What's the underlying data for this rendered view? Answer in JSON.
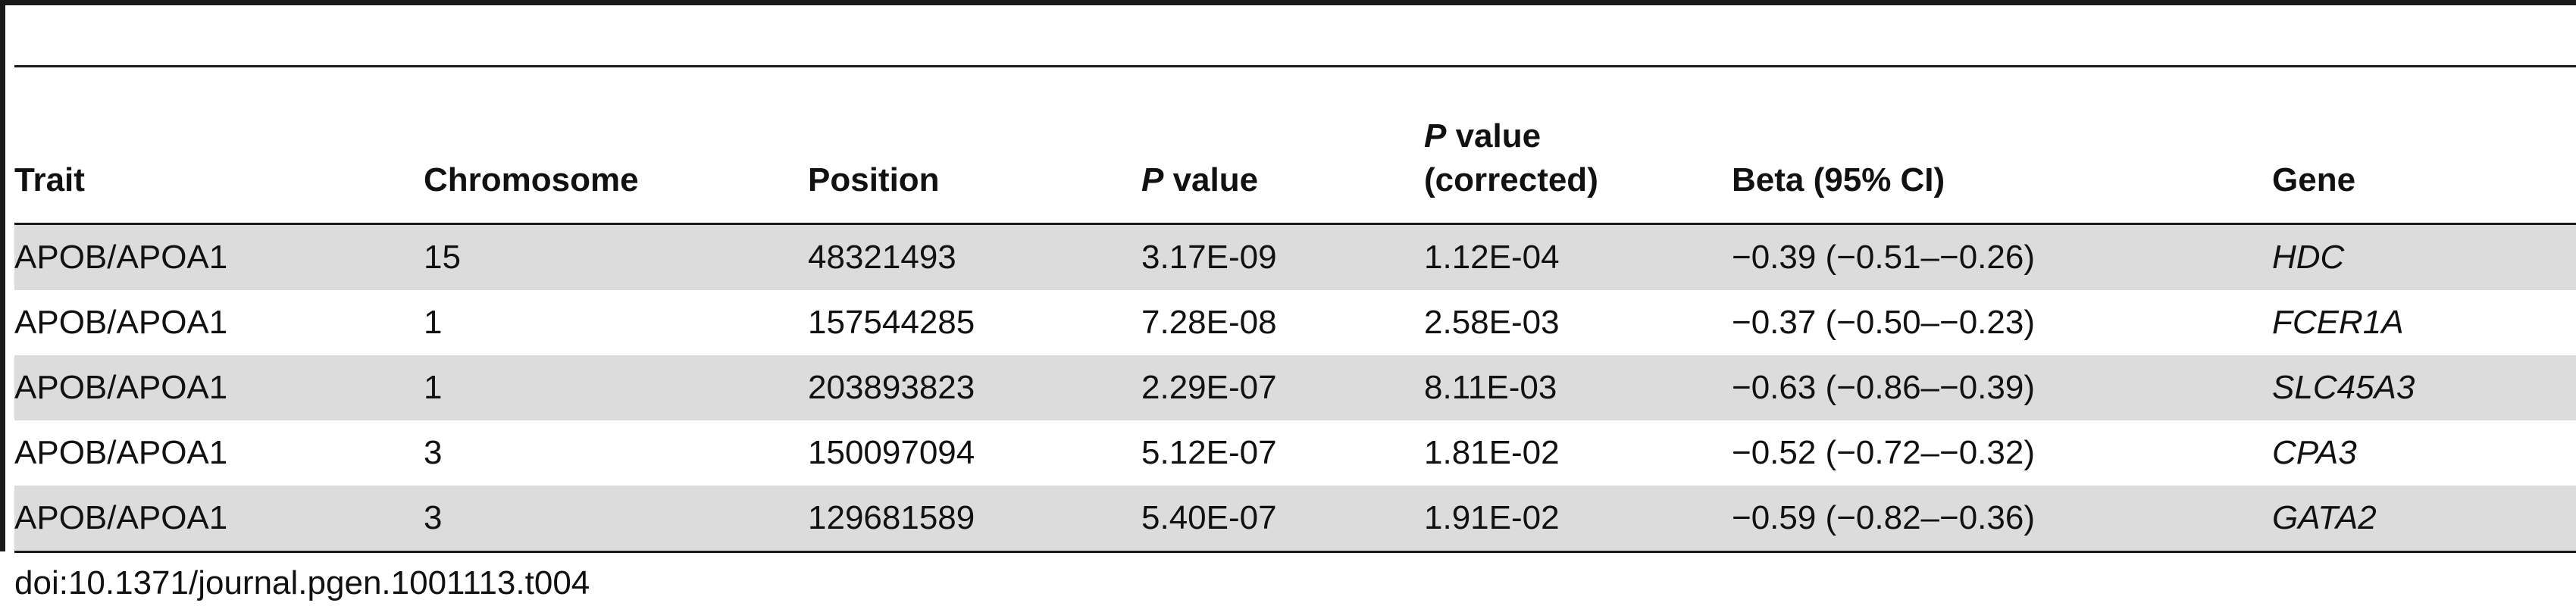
{
  "table": {
    "headers": [
      {
        "pre_italic": "",
        "italic": "",
        "text": "Trait"
      },
      {
        "pre_italic": "",
        "italic": "",
        "text": "Chromosome"
      },
      {
        "pre_italic": "",
        "italic": "",
        "text": "Position"
      },
      {
        "pre_italic": "",
        "italic": "P",
        "text": " value"
      },
      {
        "pre_italic": "",
        "italic": "P",
        "text": " value",
        "line2": "(corrected)"
      },
      {
        "pre_italic": "",
        "italic": "",
        "text": "Beta (95% CI)"
      },
      {
        "pre_italic": "",
        "italic": "",
        "text": "Gene"
      }
    ],
    "rows": [
      {
        "trait": "APOB/APOA1",
        "chromosome": "15",
        "position": "48321493",
        "p_value": "3.17E-09",
        "p_corrected": "1.12E-04",
        "beta_ci": "−0.39 (−0.51–−0.26)",
        "gene": "HDC"
      },
      {
        "trait": "APOB/APOA1",
        "chromosome": "1",
        "position": "157544285",
        "p_value": "7.28E-08",
        "p_corrected": "2.58E-03",
        "beta_ci": "−0.37 (−0.50–−0.23)",
        "gene": "FCER1A"
      },
      {
        "trait": "APOB/APOA1",
        "chromosome": "1",
        "position": "203893823",
        "p_value": "2.29E-07",
        "p_corrected": "8.11E-03",
        "beta_ci": "−0.63 (−0.86–−0.39)",
        "gene": "SLC45A3"
      },
      {
        "trait": "APOB/APOA1",
        "chromosome": "3",
        "position": "150097094",
        "p_value": "5.12E-07",
        "p_corrected": "1.81E-02",
        "beta_ci": "−0.52 (−0.72–−0.32)",
        "gene": "CPA3"
      },
      {
        "trait": "APOB/APOA1",
        "chromosome": "3",
        "position": "129681589",
        "p_value": "5.40E-07",
        "p_corrected": "1.91E-02",
        "beta_ci": "−0.59 (−0.82–−0.36)",
        "gene": "GATA2"
      }
    ]
  },
  "footer": {
    "doi": "doi:10.1371/journal.pgen.1001113.t004"
  },
  "colors": {
    "shaded_row": "#dcdcdd",
    "rule": "#1a1a1a"
  }
}
